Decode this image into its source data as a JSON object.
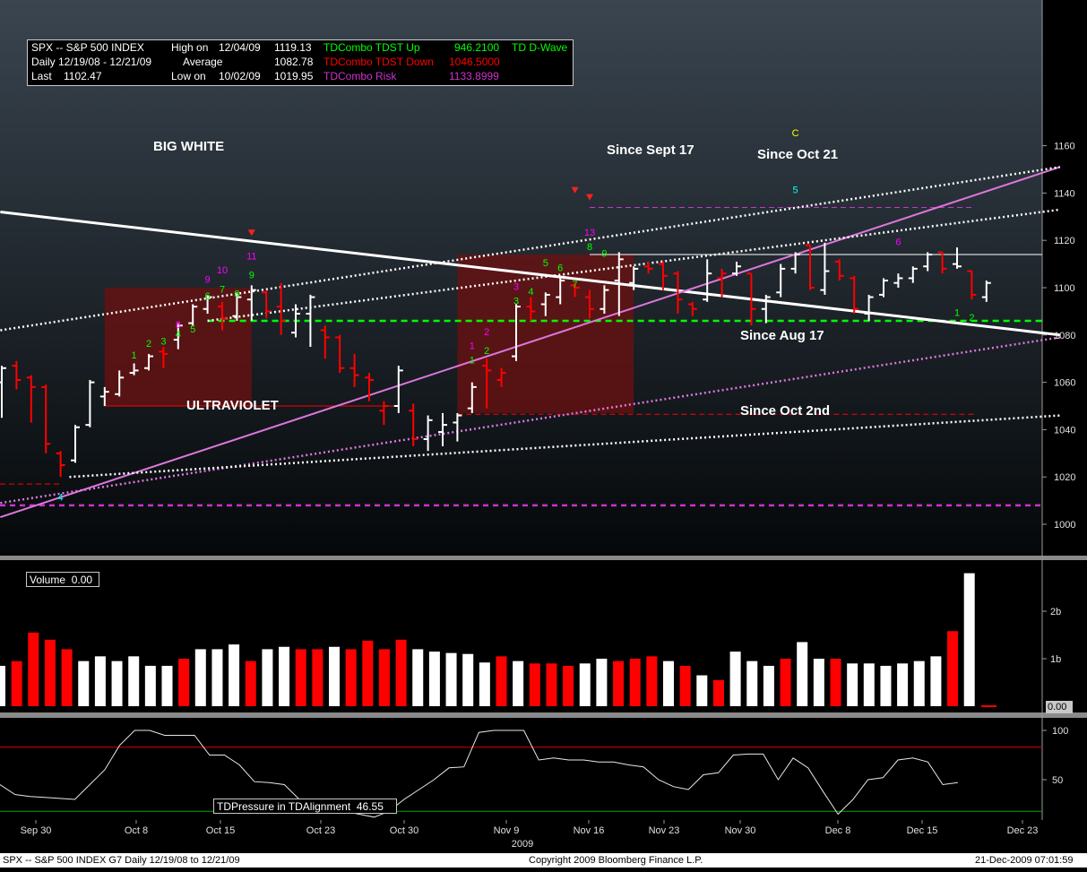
{
  "header": {
    "title": "SPX -- S&P 500 INDEX",
    "period": "Daily 12/19/08 - 12/21/09",
    "last_label": "Last",
    "last_value": "1102.47",
    "high_label": "High on",
    "high_date": "12/04/09",
    "high_value": "1119.13",
    "avg_label": "Average",
    "avg_value": "1082.78",
    "low_label": "Low on",
    "low_date": "10/02/09",
    "low_value": "1019.95",
    "tdst_up_label": "TDCombo TDST Up",
    "tdst_up_value": "946.2100",
    "tdst_down_label": "TDCombo TDST Down",
    "tdst_down_value": "1046.5000",
    "risk_label": "TDCombo Risk",
    "risk_value": "1133.8999",
    "dwave_label": "TD D-Wave"
  },
  "colors": {
    "up_bar": "#ffffff",
    "down_bar": "#ff0000",
    "tdst_up": "#00ff00",
    "tdst_down": "#ff0000",
    "risk": "#cc33cc",
    "dwave": "#00ff00",
    "setup_zone": "#6e1010",
    "count_green": "#00ff00",
    "count_magenta": "#ff00ff",
    "count_cyan": "#00ffff",
    "count_yellow": "#ffff00"
  },
  "chart_data": {
    "type": "line",
    "price_panel": {
      "ylim": [
        990,
        1170
      ],
      "yticks": [
        1000,
        1020,
        1040,
        1060,
        1080,
        1100,
        1120,
        1140,
        1160
      ],
      "xticks": [
        "Sep 30",
        "Oct 8",
        "Oct 15",
        "Oct 23",
        "Oct 30",
        "Nov 9",
        "Nov 16",
        "Nov 23",
        "Nov 30",
        "Dec 8",
        "Dec 15",
        "Dec 23"
      ],
      "year_label": "2009",
      "ohlc_bars": [
        {
          "o": 1060,
          "h": 1067,
          "l": 1045,
          "c": 1066,
          "dir": "up"
        },
        {
          "o": 1067,
          "h": 1069,
          "l": 1057,
          "c": 1061,
          "dir": "down"
        },
        {
          "o": 1062,
          "h": 1063,
          "l": 1043,
          "c": 1058,
          "dir": "down"
        },
        {
          "o": 1058,
          "h": 1059,
          "l": 1030,
          "c": 1034,
          "dir": "down"
        },
        {
          "o": 1030,
          "h": 1031,
          "l": 1020,
          "c": 1025,
          "dir": "down"
        },
        {
          "o": 1027,
          "h": 1042,
          "l": 1026,
          "c": 1041,
          "dir": "up"
        },
        {
          "o": 1042,
          "h": 1061,
          "l": 1041,
          "c": 1060,
          "dir": "up"
        },
        {
          "o": 1054,
          "h": 1058,
          "l": 1050,
          "c": 1056,
          "dir": "up"
        },
        {
          "o": 1055,
          "h": 1065,
          "l": 1054,
          "c": 1062,
          "dir": "up"
        },
        {
          "o": 1064,
          "h": 1068,
          "l": 1063,
          "c": 1065,
          "dir": "up"
        },
        {
          "o": 1066,
          "h": 1072,
          "l": 1065,
          "c": 1071,
          "dir": "up"
        },
        {
          "o": 1073,
          "h": 1075,
          "l": 1066,
          "c": 1072,
          "dir": "down"
        },
        {
          "o": 1078,
          "h": 1085,
          "l": 1074,
          "c": 1084,
          "dir": "up"
        },
        {
          "o": 1085,
          "h": 1093,
          "l": 1084,
          "c": 1092,
          "dir": "up"
        },
        {
          "o": 1091,
          "h": 1097,
          "l": 1089,
          "c": 1096,
          "dir": "up"
        },
        {
          "o": 1092,
          "h": 1094,
          "l": 1082,
          "c": 1087,
          "dir": "down"
        },
        {
          "o": 1088,
          "h": 1098,
          "l": 1086,
          "c": 1096,
          "dir": "up"
        },
        {
          "o": 1095,
          "h": 1101,
          "l": 1086,
          "c": 1099,
          "dir": "up"
        },
        {
          "o": 1098,
          "h": 1099,
          "l": 1087,
          "c": 1090,
          "dir": "down"
        },
        {
          "o": 1092,
          "h": 1102,
          "l": 1080,
          "c": 1086,
          "dir": "down"
        },
        {
          "o": 1081,
          "h": 1093,
          "l": 1079,
          "c": 1089,
          "dir": "up"
        },
        {
          "o": 1089,
          "h": 1097,
          "l": 1075,
          "c": 1096,
          "dir": "up"
        },
        {
          "o": 1082,
          "h": 1084,
          "l": 1070,
          "c": 1079,
          "dir": "down"
        },
        {
          "o": 1079,
          "h": 1080,
          "l": 1064,
          "c": 1066,
          "dir": "down"
        },
        {
          "o": 1066,
          "h": 1072,
          "l": 1058,
          "c": 1063,
          "dir": "down"
        },
        {
          "o": 1062,
          "h": 1064,
          "l": 1052,
          "c": 1061,
          "dir": "down"
        },
        {
          "o": 1048,
          "h": 1052,
          "l": 1042,
          "c": 1050,
          "dir": "down"
        },
        {
          "o": 1050,
          "h": 1067,
          "l": 1047,
          "c": 1065,
          "dir": "up"
        },
        {
          "o": 1048,
          "h": 1051,
          "l": 1033,
          "c": 1036,
          "dir": "down"
        },
        {
          "o": 1036,
          "h": 1046,
          "l": 1031,
          "c": 1044,
          "dir": "up"
        },
        {
          "o": 1039,
          "h": 1047,
          "l": 1033,
          "c": 1042,
          "dir": "up"
        },
        {
          "o": 1043,
          "h": 1047,
          "l": 1035,
          "c": 1046,
          "dir": "up"
        },
        {
          "o": 1049,
          "h": 1060,
          "l": 1047,
          "c": 1058,
          "dir": "up"
        },
        {
          "o": 1067,
          "h": 1070,
          "l": 1049,
          "c": 1065,
          "dir": "down"
        },
        {
          "o": 1061,
          "h": 1066,
          "l": 1058,
          "c": 1064,
          "dir": "down"
        },
        {
          "o": 1071,
          "h": 1093,
          "l": 1069,
          "c": 1092,
          "dir": "up"
        },
        {
          "o": 1092,
          "h": 1096,
          "l": 1086,
          "c": 1090,
          "dir": "down"
        },
        {
          "o": 1093,
          "h": 1098,
          "l": 1088,
          "c": 1097,
          "dir": "up"
        },
        {
          "o": 1096,
          "h": 1105,
          "l": 1093,
          "c": 1103,
          "dir": "up"
        },
        {
          "o": 1101,
          "h": 1102,
          "l": 1096,
          "c": 1100,
          "dir": "down"
        },
        {
          "o": 1096,
          "h": 1099,
          "l": 1087,
          "c": 1091,
          "dir": "down"
        },
        {
          "o": 1091,
          "h": 1101,
          "l": 1089,
          "c": 1099,
          "dir": "up"
        },
        {
          "o": 1103,
          "h": 1115,
          "l": 1088,
          "c": 1112,
          "dir": "up"
        },
        {
          "o": 1102,
          "h": 1109,
          "l": 1099,
          "c": 1108,
          "dir": "up"
        },
        {
          "o": 1109,
          "h": 1111,
          "l": 1106,
          "c": 1108,
          "dir": "down"
        },
        {
          "o": 1110,
          "h": 1111,
          "l": 1099,
          "c": 1105,
          "dir": "down"
        },
        {
          "o": 1106,
          "h": 1107,
          "l": 1089,
          "c": 1095,
          "dir": "down"
        },
        {
          "o": 1093,
          "h": 1094,
          "l": 1088,
          "c": 1091,
          "dir": "down"
        },
        {
          "o": 1095,
          "h": 1112,
          "l": 1094,
          "c": 1106,
          "dir": "up"
        },
        {
          "o": 1104,
          "h": 1108,
          "l": 1096,
          "c": 1106,
          "dir": "down"
        },
        {
          "o": 1106,
          "h": 1111,
          "l": 1105,
          "c": 1109,
          "dir": "up"
        },
        {
          "o": 1106,
          "h": 1106,
          "l": 1084,
          "c": 1091,
          "dir": "down"
        },
        {
          "o": 1091,
          "h": 1097,
          "l": 1085,
          "c": 1096,
          "dir": "up"
        },
        {
          "o": 1098,
          "h": 1110,
          "l": 1096,
          "c": 1108,
          "dir": "up"
        },
        {
          "o": 1108,
          "h": 1115,
          "l": 1106,
          "c": 1114,
          "dir": "up"
        },
        {
          "o": 1118,
          "h": 1118,
          "l": 1099,
          "c": 1100,
          "dir": "down"
        },
        {
          "o": 1099,
          "h": 1119,
          "l": 1097,
          "c": 1107,
          "dir": "up"
        },
        {
          "o": 1111,
          "h": 1112,
          "l": 1103,
          "c": 1105,
          "dir": "down"
        },
        {
          "o": 1104,
          "h": 1105,
          "l": 1089,
          "c": 1091,
          "dir": "down"
        },
        {
          "o": 1089,
          "h": 1097,
          "l": 1086,
          "c": 1096,
          "dir": "up"
        },
        {
          "o": 1097,
          "h": 1104,
          "l": 1096,
          "c": 1103,
          "dir": "up"
        },
        {
          "o": 1102,
          "h": 1106,
          "l": 1100,
          "c": 1104,
          "dir": "up"
        },
        {
          "o": 1104,
          "h": 1109,
          "l": 1102,
          "c": 1108,
          "dir": "up"
        },
        {
          "o": 1109,
          "h": 1115,
          "l": 1107,
          "c": 1114,
          "dir": "up"
        },
        {
          "o": 1115,
          "h": 1115,
          "l": 1106,
          "c": 1108,
          "dir": "down"
        },
        {
          "o": 1110,
          "h": 1117,
          "l": 1108,
          "c": 1109,
          "dir": "up"
        },
        {
          "o": 1107,
          "h": 1107,
          "l": 1095,
          "c": 1097,
          "dir": "down"
        },
        {
          "o": 1096,
          "h": 1103,
          "l": 1094,
          "c": 1102,
          "dir": "up"
        }
      ],
      "trendline_labels": [
        "BIG WHITE",
        "ULTRAVIOLET",
        "Since Sept 17",
        "Since Oct 21",
        "Since Aug 17",
        "Since Oct 2nd"
      ],
      "levels": {
        "tdst_down": 1046.5,
        "tdst_up_visible": 1086,
        "risk": 1133.9,
        "lower_red": 1017,
        "lower_magenta": 1008,
        "resistance_white": 1114
      }
    },
    "volume_panel": {
      "title": "Volume",
      "current_value": "0.00",
      "last_label": "0.00",
      "yticks": [
        "1b",
        "2b"
      ],
      "values_b": [
        0.85,
        0.95,
        1.55,
        1.4,
        1.2,
        0.95,
        1.05,
        0.95,
        1.05,
        0.85,
        0.85,
        1.0,
        1.2,
        1.2,
        1.3,
        0.95,
        1.2,
        1.25,
        1.2,
        1.2,
        1.25,
        1.2,
        1.38,
        1.2,
        1.4,
        1.2,
        1.15,
        1.12,
        1.1,
        0.92,
        1.05,
        0.95,
        0.9,
        0.9,
        0.85,
        0.9,
        1.0,
        0.95,
        1.0,
        1.05,
        0.95,
        0.85,
        0.65,
        0.55,
        1.15,
        0.95,
        0.85,
        1.0,
        1.35,
        1.0,
        1.0,
        0.9,
        0.9,
        0.85,
        0.9,
        0.95,
        1.05,
        1.58,
        2.8
      ],
      "directions": [
        "up",
        "down",
        "down",
        "down",
        "down",
        "up",
        "up",
        "up",
        "up",
        "up",
        "up",
        "down",
        "up",
        "up",
        "up",
        "down",
        "up",
        "up",
        "down",
        "down",
        "up",
        "down",
        "down",
        "down",
        "down",
        "up",
        "up",
        "up",
        "up",
        "up",
        "down",
        "up",
        "down",
        "down",
        "down",
        "up",
        "up",
        "down",
        "down",
        "down",
        "up",
        "down",
        "up",
        "down",
        "up",
        "up",
        "up",
        "down",
        "up",
        "up",
        "down",
        "up",
        "up",
        "up",
        "up",
        "up",
        "up",
        "down",
        "up"
      ]
    },
    "pressure_panel": {
      "title": "TDPressure in TDAlignment",
      "current_value": "46.55",
      "yticks": [
        50,
        100
      ],
      "upper_line": 83,
      "lower_line": 18,
      "values": [
        45,
        35,
        33,
        32,
        31,
        30,
        45,
        60,
        85,
        100,
        100,
        95,
        95,
        95,
        75,
        75,
        65,
        48,
        47,
        45,
        30,
        25,
        20,
        18,
        15,
        12,
        18,
        30,
        40,
        50,
        62,
        63,
        98,
        100,
        100,
        100,
        70,
        72,
        70,
        70,
        68,
        68,
        65,
        63,
        50,
        43,
        40,
        55,
        57,
        75,
        76,
        76,
        50,
        72,
        62,
        38,
        15,
        30,
        50,
        52,
        70,
        72,
        68,
        45,
        47
      ],
      "ylim": [
        10,
        110
      ]
    },
    "td_counts": [
      {
        "t": "1",
        "c": "green"
      },
      {
        "t": "2",
        "c": "green"
      },
      {
        "t": "3",
        "c": "green"
      },
      {
        "t": "4",
        "c": "green"
      },
      {
        "t": "5",
        "c": "green"
      },
      {
        "t": "6",
        "c": "green"
      },
      {
        "t": "7",
        "c": "green"
      },
      {
        "t": "8",
        "c": "green"
      },
      {
        "t": "9",
        "c": "green"
      },
      {
        "t": "8",
        "c": "magenta"
      },
      {
        "t": "9",
        "c": "magenta"
      },
      {
        "t": "10",
        "c": "magenta"
      },
      {
        "t": "11",
        "c": "magenta"
      },
      {
        "t": "1",
        "c": "magenta"
      },
      {
        "t": "2",
        "c": "magenta"
      },
      {
        "t": "3",
        "c": "magenta"
      },
      {
        "t": "13",
        "c": "magenta"
      },
      {
        "t": "6",
        "c": "magenta"
      },
      {
        "t": "1",
        "c": "green"
      },
      {
        "t": "2",
        "c": "green"
      },
      {
        "t": "3",
        "c": "green"
      },
      {
        "t": "4",
        "c": "green"
      },
      {
        "t": "5",
        "c": "green"
      },
      {
        "t": "6",
        "c": "green"
      },
      {
        "t": "7",
        "c": "green"
      },
      {
        "t": "8",
        "c": "green"
      },
      {
        "t": "9",
        "c": "green"
      },
      {
        "t": "1",
        "c": "green"
      },
      {
        "t": "2",
        "c": "green"
      },
      {
        "t": "4",
        "c": "cyan"
      },
      {
        "t": "5",
        "c": "cyan"
      },
      {
        "t": "C",
        "c": "yellow"
      }
    ]
  },
  "footer": {
    "left": "SPX -- S&P 500 INDEX     G7  Daily 12/19/08 to 12/21/09",
    "center": "Copyright 2009 Bloomberg Finance L.P.",
    "right": "21-Dec-2009 07:01:59"
  }
}
